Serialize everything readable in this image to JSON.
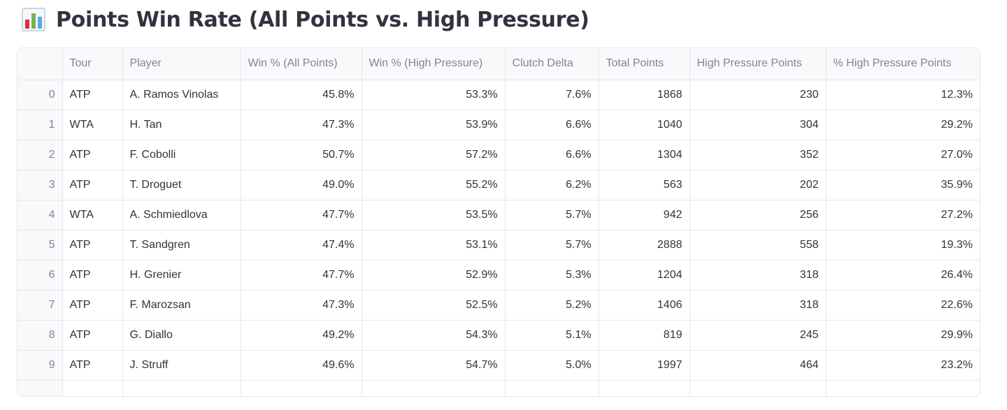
{
  "header": {
    "icon": "bar-chart-emoji",
    "title": "Points Win Rate (All Points vs. High Pressure)"
  },
  "table": {
    "columns": [
      "",
      "Tour",
      "Player",
      "Win % (All Points)",
      "Win % (High Pressure)",
      "Clutch Delta",
      "Total Points",
      "High Pressure Points",
      "% High Pressure Points"
    ],
    "rows": [
      {
        "index": "0",
        "tour": "ATP",
        "player": "A. Ramos Vinolas",
        "win_all": "45.8%",
        "win_hp": "53.3%",
        "clutch_delta": "7.6%",
        "total_points": "1868",
        "hp_points": "230",
        "pct_hp": "12.3%"
      },
      {
        "index": "1",
        "tour": "WTA",
        "player": "H. Tan",
        "win_all": "47.3%",
        "win_hp": "53.9%",
        "clutch_delta": "6.6%",
        "total_points": "1040",
        "hp_points": "304",
        "pct_hp": "29.2%"
      },
      {
        "index": "2",
        "tour": "ATP",
        "player": "F. Cobolli",
        "win_all": "50.7%",
        "win_hp": "57.2%",
        "clutch_delta": "6.6%",
        "total_points": "1304",
        "hp_points": "352",
        "pct_hp": "27.0%"
      },
      {
        "index": "3",
        "tour": "ATP",
        "player": "T. Droguet",
        "win_all": "49.0%",
        "win_hp": "55.2%",
        "clutch_delta": "6.2%",
        "total_points": "563",
        "hp_points": "202",
        "pct_hp": "35.9%"
      },
      {
        "index": "4",
        "tour": "WTA",
        "player": "A. Schmiedlova",
        "win_all": "47.7%",
        "win_hp": "53.5%",
        "clutch_delta": "5.7%",
        "total_points": "942",
        "hp_points": "256",
        "pct_hp": "27.2%"
      },
      {
        "index": "5",
        "tour": "ATP",
        "player": "T. Sandgren",
        "win_all": "47.4%",
        "win_hp": "53.1%",
        "clutch_delta": "5.7%",
        "total_points": "2888",
        "hp_points": "558",
        "pct_hp": "19.3%"
      },
      {
        "index": "6",
        "tour": "ATP",
        "player": "H. Grenier",
        "win_all": "47.7%",
        "win_hp": "52.9%",
        "clutch_delta": "5.3%",
        "total_points": "1204",
        "hp_points": "318",
        "pct_hp": "26.4%"
      },
      {
        "index": "7",
        "tour": "ATP",
        "player": "F. Marozsan",
        "win_all": "47.3%",
        "win_hp": "52.5%",
        "clutch_delta": "5.2%",
        "total_points": "1406",
        "hp_points": "318",
        "pct_hp": "22.6%"
      },
      {
        "index": "8",
        "tour": "ATP",
        "player": "G. Diallo",
        "win_all": "49.2%",
        "win_hp": "54.3%",
        "clutch_delta": "5.1%",
        "total_points": "819",
        "hp_points": "245",
        "pct_hp": "29.9%"
      },
      {
        "index": "9",
        "tour": "ATP",
        "player": "J. Struff",
        "win_all": "49.6%",
        "win_hp": "54.7%",
        "clutch_delta": "5.0%",
        "total_points": "1997",
        "hp_points": "464",
        "pct_hp": "23.2%"
      }
    ]
  },
  "colors": {
    "header_bg": "#f8f9fb",
    "border": "#e6e7ea",
    "muted_text": "#808495",
    "body_text": "#31333f"
  }
}
